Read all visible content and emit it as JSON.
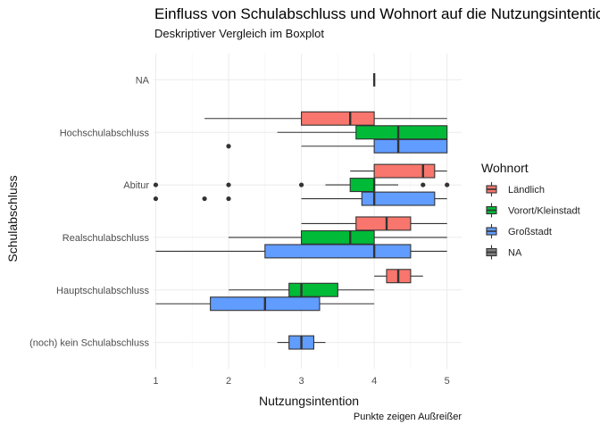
{
  "chart_data": {
    "type": "boxplot",
    "title": "Einfluss von Schulabschluss und Wohnort auf die Nutzungsintention",
    "subtitle": "Deskriptiver Vergleich im Boxplot",
    "xlabel": "Nutzungsintention",
    "ylabel": "Schulabschluss",
    "caption": "Punkte zeigen Außreißer",
    "xlim": [
      0.97,
      5.2
    ],
    "x_ticks": [
      1,
      2,
      3,
      4,
      5
    ],
    "grid": true,
    "legend": {
      "title": "Wohnort",
      "placement": "right",
      "items": [
        {
          "name": "Ländlich",
          "color": "#F8766D"
        },
        {
          "name": "Vorort/Kleinstadt",
          "color": "#00BA38"
        },
        {
          "name": "Großstadt",
          "color": "#619CFF"
        },
        {
          "name": "NA",
          "color": "#7F7F7F"
        }
      ]
    },
    "categories": [
      "NA",
      "Hochschulabschluss",
      "Abitur",
      "Realschulabschluss",
      "Hauptschulabschluss",
      "(noch) kein Schulabschluss"
    ],
    "boxes": [
      {
        "category": "NA",
        "group": "NA",
        "whisker_low": 4,
        "q1": 4,
        "median": 4,
        "q3": 4,
        "whisker_high": 4,
        "outliers": []
      },
      {
        "category": "Hochschulabschluss",
        "group": "Großstadt",
        "whisker_low": 3,
        "q1": 4,
        "median": 4.33,
        "q3": 5,
        "whisker_high": 5,
        "outliers": [
          2
        ]
      },
      {
        "category": "Hochschulabschluss",
        "group": "Vorort/Kleinstadt",
        "whisker_low": 2.67,
        "q1": 3.75,
        "median": 4.33,
        "q3": 5,
        "whisker_high": 5,
        "outliers": []
      },
      {
        "category": "Hochschulabschluss",
        "group": "Ländlich",
        "whisker_low": 1.67,
        "q1": 3,
        "median": 3.67,
        "q3": 4,
        "whisker_high": 5,
        "outliers": []
      },
      {
        "category": "Abitur",
        "group": "Großstadt",
        "whisker_low": 3,
        "q1": 3.83,
        "median": 4,
        "q3": 4.83,
        "whisker_high": 5,
        "outliers": [
          1,
          1.67,
          2
        ]
      },
      {
        "category": "Abitur",
        "group": "Vorort/Kleinstadt",
        "whisker_low": 3.33,
        "q1": 3.67,
        "median": 4,
        "q3": 4,
        "whisker_high": 4.33,
        "outliers": [
          1,
          2,
          3,
          4.67,
          5
        ]
      },
      {
        "category": "Abitur",
        "group": "Ländlich",
        "whisker_low": 3.67,
        "q1": 4,
        "median": 4.67,
        "q3": 4.83,
        "whisker_high": 5,
        "outliers": []
      },
      {
        "category": "Realschulabschluss",
        "group": "Großstadt",
        "whisker_low": 1,
        "q1": 2.5,
        "median": 4,
        "q3": 4.5,
        "whisker_high": 5,
        "outliers": []
      },
      {
        "category": "Realschulabschluss",
        "group": "Vorort/Kleinstadt",
        "whisker_low": 2,
        "q1": 3,
        "median": 3.67,
        "q3": 4,
        "whisker_high": 5,
        "outliers": []
      },
      {
        "category": "Realschulabschluss",
        "group": "Ländlich",
        "whisker_low": 3,
        "q1": 3.75,
        "median": 4.17,
        "q3": 4.5,
        "whisker_high": 5,
        "outliers": []
      },
      {
        "category": "Hauptschulabschluss",
        "group": "Großstadt",
        "whisker_low": 1,
        "q1": 1.75,
        "median": 2.5,
        "q3": 3.25,
        "whisker_high": 4,
        "outliers": []
      },
      {
        "category": "Hauptschulabschluss",
        "group": "Vorort/Kleinstadt",
        "whisker_low": 2,
        "q1": 2.83,
        "median": 3,
        "q3": 3.5,
        "whisker_high": 4,
        "outliers": []
      },
      {
        "category": "Hauptschulabschluss",
        "group": "Ländlich",
        "whisker_low": 4,
        "q1": 4.17,
        "median": 4.33,
        "q3": 4.5,
        "whisker_high": 4.67,
        "outliers": []
      },
      {
        "category": "(noch) kein Schulabschluss",
        "group": "Großstadt",
        "whisker_low": 2.67,
        "q1": 2.83,
        "median": 3,
        "q3": 3.17,
        "whisker_high": 3.33,
        "outliers": []
      }
    ]
  }
}
